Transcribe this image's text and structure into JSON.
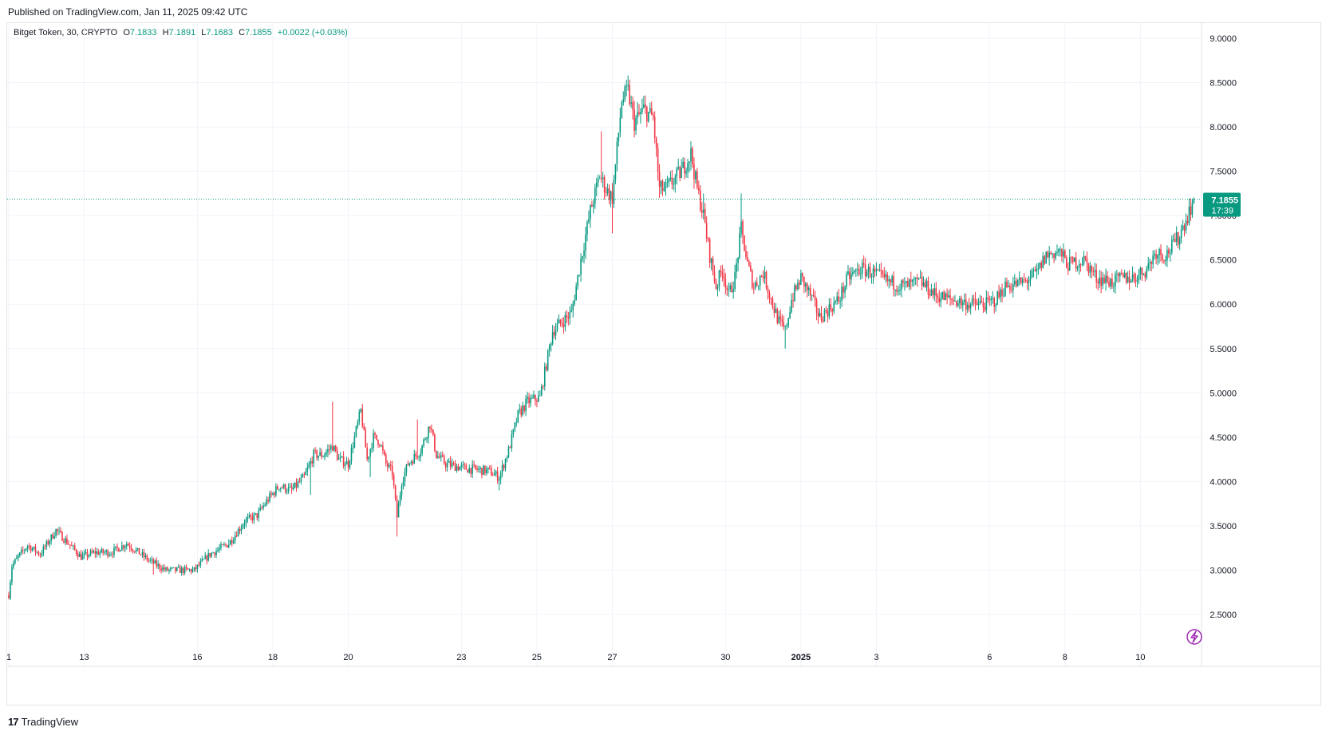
{
  "header": {
    "published": "Published on TradingView.com, Jan 11, 2025 09:42 UTC"
  },
  "legend": {
    "symbol": "Bitget Token, 30, CRYPTO",
    "open_label": "O",
    "open": "7.1833",
    "high_label": "H",
    "high": "7.1891",
    "low_label": "L",
    "low": "7.1683",
    "close_label": "C",
    "close": "7.1855",
    "change": "+0.0022 (+0.03%)"
  },
  "price_tag": {
    "price": "7.1855",
    "countdown": "17:39"
  },
  "footer": {
    "brand": "TradingView",
    "logo_text": "17"
  },
  "colors": {
    "up": "#089981",
    "down": "#f23645",
    "grid": "#f0f3fa",
    "axis_text": "#131722",
    "last_price": "#089981",
    "accent": "#9c27b0"
  },
  "icons": {
    "lightning": "lightning-icon",
    "logo": "tradingview-logo-icon"
  },
  "chart_data": {
    "type": "candlestick",
    "ylim": [
      2.3,
      9.15
    ],
    "y_ticks": [
      "9.0000",
      "8.5000",
      "8.0000",
      "7.5000",
      "7.0000",
      "6.5000",
      "6.0000",
      "5.5000",
      "5.0000",
      "4.5000",
      "4.0000",
      "3.5000",
      "3.0000",
      "2.5000"
    ],
    "x_ticks": [
      {
        "label": "1",
        "idx": 0
      },
      {
        "label": "13",
        "idx": 48
      },
      {
        "label": "16",
        "idx": 120
      },
      {
        "label": "18",
        "idx": 168
      },
      {
        "label": "20",
        "idx": 216
      },
      {
        "label": "23",
        "idx": 288
      },
      {
        "label": "25",
        "idx": 336
      },
      {
        "label": "27",
        "idx": 384
      },
      {
        "label": "30",
        "idx": 456
      },
      {
        "label": "2025",
        "idx": 504,
        "bold": true
      },
      {
        "label": "3",
        "idx": 552
      },
      {
        "label": "6",
        "idx": 624
      },
      {
        "label": "8",
        "idx": 672
      },
      {
        "label": "10",
        "idx": 720
      }
    ],
    "last_price": 7.1855,
    "anchors": [
      [
        0,
        2.72
      ],
      [
        2,
        3.05
      ],
      [
        6,
        3.15
      ],
      [
        12,
        3.28
      ],
      [
        20,
        3.18
      ],
      [
        30,
        3.45
      ],
      [
        38,
        3.3
      ],
      [
        46,
        3.15
      ],
      [
        55,
        3.2
      ],
      [
        65,
        3.2
      ],
      [
        75,
        3.3
      ],
      [
        90,
        3.1
      ],
      [
        100,
        3.0
      ],
      [
        112,
        3.0
      ],
      [
        118,
        3.0
      ],
      [
        128,
        3.18
      ],
      [
        140,
        3.3
      ],
      [
        150,
        3.55
      ],
      [
        158,
        3.62
      ],
      [
        165,
        3.8
      ],
      [
        172,
        3.95
      ],
      [
        180,
        3.9
      ],
      [
        188,
        4.05
      ],
      [
        194,
        4.3
      ],
      [
        200,
        4.3
      ],
      [
        206,
        4.4
      ],
      [
        210,
        4.25
      ],
      [
        216,
        4.2
      ],
      [
        220,
        4.5
      ],
      [
        224,
        4.8
      ],
      [
        228,
        4.25
      ],
      [
        232,
        4.5
      ],
      [
        236,
        4.45
      ],
      [
        240,
        4.2
      ],
      [
        244,
        4.1
      ],
      [
        247,
        3.6
      ],
      [
        250,
        4.0
      ],
      [
        254,
        4.2
      ],
      [
        262,
        4.35
      ],
      [
        268,
        4.65
      ],
      [
        272,
        4.3
      ],
      [
        278,
        4.2
      ],
      [
        290,
        4.15
      ],
      [
        305,
        4.12
      ],
      [
        312,
        4.05
      ],
      [
        318,
        4.35
      ],
      [
        324,
        4.75
      ],
      [
        330,
        4.9
      ],
      [
        338,
        4.95
      ],
      [
        346,
        5.7
      ],
      [
        352,
        5.8
      ],
      [
        358,
        5.9
      ],
      [
        364,
        6.5
      ],
      [
        370,
        7.05
      ],
      [
        376,
        7.45
      ],
      [
        380,
        7.3
      ],
      [
        384,
        7.2
      ],
      [
        390,
        8.3
      ],
      [
        394,
        8.4
      ],
      [
        398,
        8.05
      ],
      [
        404,
        8.2
      ],
      [
        410,
        8.1
      ],
      [
        414,
        7.3
      ],
      [
        418,
        7.3
      ],
      [
        428,
        7.5
      ],
      [
        434,
        7.7
      ],
      [
        438,
        7.3
      ],
      [
        442,
        7.0
      ],
      [
        446,
        6.55
      ],
      [
        450,
        6.2
      ],
      [
        454,
        6.4
      ],
      [
        458,
        6.1
      ],
      [
        462,
        6.3
      ],
      [
        466,
        6.85
      ],
      [
        470,
        6.45
      ],
      [
        474,
        6.2
      ],
      [
        480,
        6.35
      ],
      [
        486,
        6.0
      ],
      [
        490,
        5.8
      ],
      [
        494,
        5.7
      ],
      [
        498,
        6.05
      ],
      [
        504,
        6.3
      ],
      [
        510,
        6.1
      ],
      [
        516,
        5.85
      ],
      [
        522,
        5.95
      ],
      [
        528,
        6.05
      ],
      [
        534,
        6.3
      ],
      [
        542,
        6.4
      ],
      [
        550,
        6.35
      ],
      [
        560,
        6.25
      ],
      [
        570,
        6.2
      ],
      [
        580,
        6.25
      ],
      [
        590,
        6.1
      ],
      [
        600,
        6.05
      ],
      [
        612,
        6.0
      ],
      [
        622,
        6.0
      ],
      [
        628,
        6.05
      ],
      [
        634,
        6.2
      ],
      [
        646,
        6.25
      ],
      [
        654,
        6.35
      ],
      [
        660,
        6.55
      ],
      [
        668,
        6.6
      ],
      [
        674,
        6.45
      ],
      [
        684,
        6.5
      ],
      [
        692,
        6.3
      ],
      [
        702,
        6.25
      ],
      [
        710,
        6.3
      ],
      [
        716,
        6.3
      ],
      [
        724,
        6.4
      ],
      [
        730,
        6.6
      ],
      [
        736,
        6.55
      ],
      [
        744,
        6.75
      ],
      [
        750,
        7.0
      ],
      [
        754,
        7.19
      ]
    ],
    "spikes": [
      [
        92,
        3.12,
        2.95
      ],
      [
        140,
        3.3,
        3.35
      ],
      [
        192,
        4.1,
        3.85
      ],
      [
        206,
        4.5,
        4.9
      ],
      [
        230,
        4.4,
        4.05
      ],
      [
        247,
        3.7,
        3.38
      ],
      [
        260,
        4.3,
        4.7
      ],
      [
        312,
        4.0,
        3.9
      ],
      [
        377,
        7.5,
        7.95
      ],
      [
        384,
        7.3,
        6.8
      ],
      [
        394,
        8.45,
        8.55
      ],
      [
        414,
        7.5,
        7.2
      ],
      [
        442,
        7.0,
        7.25
      ],
      [
        466,
        6.9,
        7.25
      ],
      [
        494,
        5.6,
        5.5
      ]
    ],
    "num_candles": 755
  }
}
